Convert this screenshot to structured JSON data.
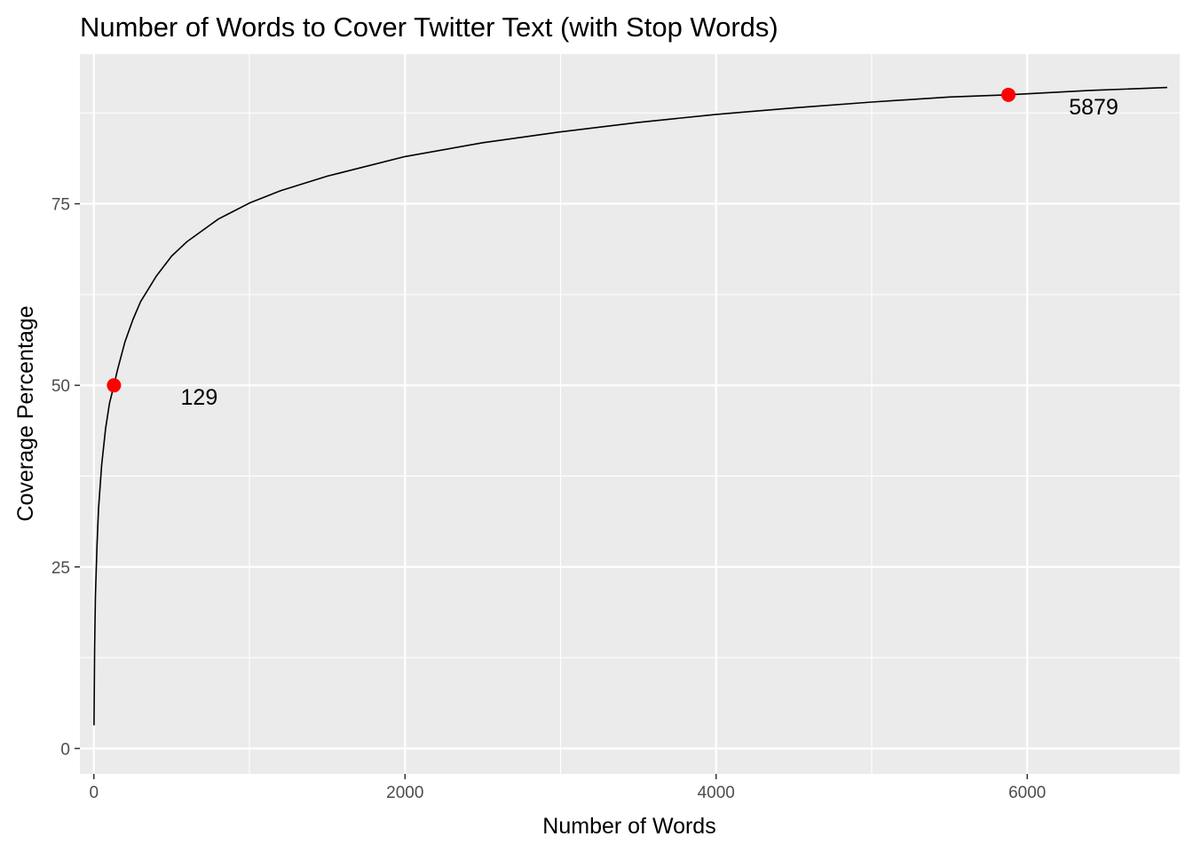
{
  "chart_data": {
    "type": "line",
    "title": "Number of Words to Cover Twitter Text (with Stop Words)",
    "xlabel": "Number of Words",
    "ylabel": "Coverage Percentage",
    "xlim": [
      -90,
      6980
    ],
    "ylim": [
      -3.5,
      95.6
    ],
    "x_ticks": [
      0,
      2000,
      4000,
      6000
    ],
    "y_ticks": [
      0,
      25,
      50,
      75
    ],
    "grid": true,
    "legend": "none",
    "colors": {
      "panel": "#ebebeb",
      "grid": "#ffffff",
      "line": "#000000",
      "point": "#ff0000",
      "tick_text": "#4d4d4d"
    },
    "series": [
      {
        "x": [
          1,
          5,
          10,
          20,
          30,
          50,
          75,
          100,
          129,
          150,
          200,
          250,
          300,
          400,
          500,
          600,
          800,
          1000,
          1200,
          1500,
          2000,
          2500,
          3000,
          3500,
          4000,
          4500,
          5000,
          5500,
          5879,
          6400,
          6900
        ],
        "y": [
          3.2,
          14,
          21,
          28,
          33,
          39,
          44,
          47.5,
          50,
          52,
          56,
          59,
          61.5,
          65,
          67.8,
          69.8,
          72.9,
          75.1,
          76.8,
          78.8,
          81.5,
          83.4,
          84.9,
          86.2,
          87.3,
          88.2,
          89.0,
          89.7,
          90.0,
          90.6,
          91.0
        ]
      }
    ],
    "points": [
      {
        "x": 129,
        "y": 50,
        "label": "129"
      },
      {
        "x": 5879,
        "y": 90,
        "label": "5879"
      }
    ]
  }
}
